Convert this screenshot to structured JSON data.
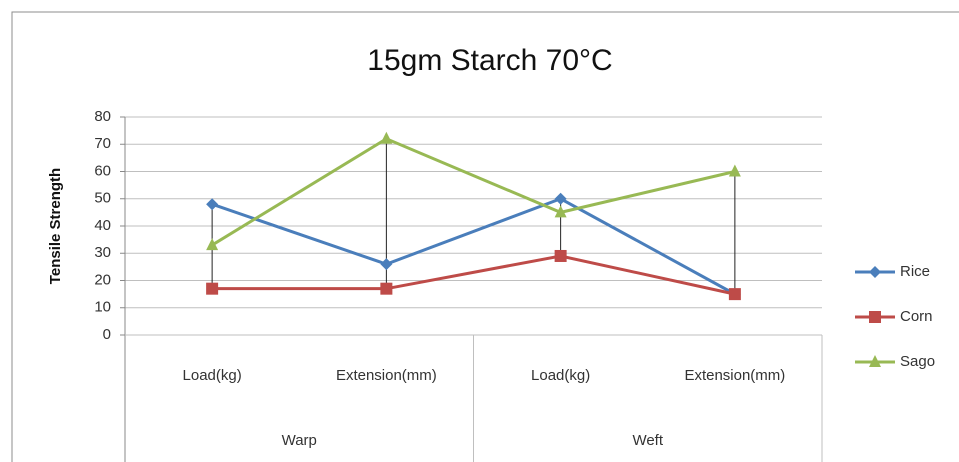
{
  "chart_data": {
    "type": "line",
    "title": "15gm Starch 70°C",
    "y_label": "Tensile Strength",
    "categories": [
      "Load(kg)",
      "Extension(mm)",
      "Load(kg)",
      "Extension(mm)"
    ],
    "category_groups": [
      "Warp",
      "Weft"
    ],
    "series": [
      {
        "name": "Rice",
        "color": "#4a7ebb",
        "marker": "diamond",
        "values": [
          48,
          26,
          50,
          15
        ]
      },
      {
        "name": "Corn",
        "color": "#be4b48",
        "marker": "square",
        "values": [
          17,
          17,
          29,
          15
        ]
      },
      {
        "name": "Sago",
        "color": "#98b954",
        "marker": "triangle",
        "values": [
          33,
          72,
          45,
          60
        ]
      }
    ],
    "ylim": [
      0,
      80
    ],
    "yticks": [
      0,
      10,
      20,
      30,
      40,
      50,
      60,
      70,
      80
    ],
    "grid": true,
    "drop_lines": true,
    "legend": "right"
  }
}
